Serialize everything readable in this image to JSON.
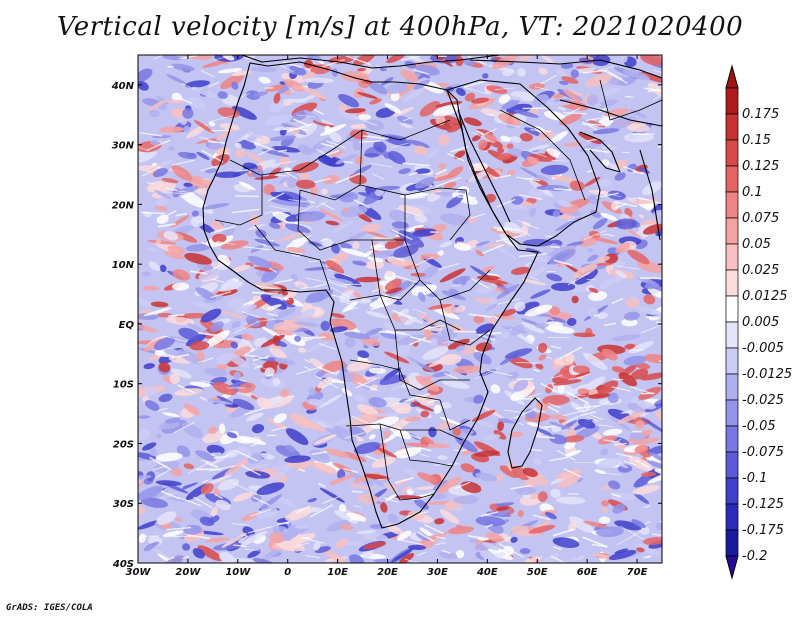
{
  "title": "Vertical velocity [m/s] at 400hPa, VT: 2021020400",
  "credit": "GrADS: IGES/COLA",
  "map": {
    "variable": "Vertical velocity",
    "units": "m/s",
    "level": "400hPa",
    "valid_time": "2021020400",
    "extent": {
      "lon_min": -30,
      "lon_max": 75,
      "lat_min": -40,
      "lat_max": 45
    },
    "lon_ticks": [
      {
        "value": -30,
        "label": "30W"
      },
      {
        "value": -20,
        "label": "20W"
      },
      {
        "value": -10,
        "label": "10W"
      },
      {
        "value": 0,
        "label": "0"
      },
      {
        "value": 10,
        "label": "10E"
      },
      {
        "value": 20,
        "label": "20E"
      },
      {
        "value": 30,
        "label": "30E"
      },
      {
        "value": 40,
        "label": "40E"
      },
      {
        "value": 50,
        "label": "50E"
      },
      {
        "value": 60,
        "label": "60E"
      },
      {
        "value": 70,
        "label": "70E"
      }
    ],
    "lat_ticks": [
      {
        "value": 40,
        "label": "40N"
      },
      {
        "value": 30,
        "label": "30N"
      },
      {
        "value": 20,
        "label": "20N"
      },
      {
        "value": 10,
        "label": "10N"
      },
      {
        "value": 0,
        "label": "EQ"
      },
      {
        "value": -10,
        "label": "10S"
      },
      {
        "value": -20,
        "label": "20S"
      },
      {
        "value": -30,
        "label": "30S"
      },
      {
        "value": -40,
        "label": "40S"
      }
    ]
  },
  "colorbar": {
    "top_color": "#a01414",
    "bottom_color": "#2a0a9a",
    "entries": [
      {
        "label": "0.175",
        "color": "#b01c1c"
      },
      {
        "label": "0.15",
        "color": "#c83232"
      },
      {
        "label": "0.125",
        "color": "#d84a4a"
      },
      {
        "label": "0.1",
        "color": "#e46464"
      },
      {
        "label": "0.075",
        "color": "#ee8484"
      },
      {
        "label": "0.05",
        "color": "#f4a2a2"
      },
      {
        "label": "0.025",
        "color": "#f8c0c0"
      },
      {
        "label": "0.0125",
        "color": "#fbdcdc"
      },
      {
        "label": "0.005",
        "color": "#ffffff"
      },
      {
        "label": "-0.005",
        "color": "#e4e4fa"
      },
      {
        "label": "-0.0125",
        "color": "#ccccf6"
      },
      {
        "label": "-0.025",
        "color": "#b0b0f0"
      },
      {
        "label": "-0.05",
        "color": "#9494ea"
      },
      {
        "label": "-0.075",
        "color": "#7878e2"
      },
      {
        "label": "-0.1",
        "color": "#5c5cd8"
      },
      {
        "label": "-0.125",
        "color": "#4040cc"
      },
      {
        "label": "-0.175",
        "color": "#2a2abc"
      },
      {
        "label": "-0.2",
        "color": "#1a1a9e"
      }
    ]
  }
}
